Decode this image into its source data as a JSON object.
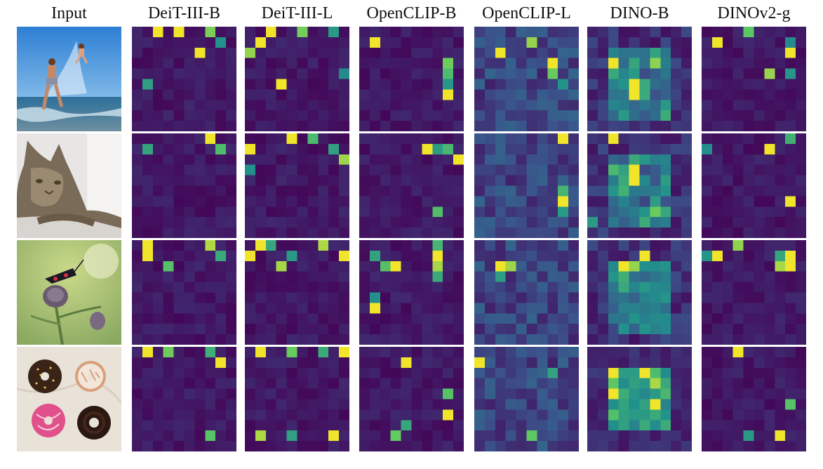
{
  "figure": {
    "columns": [
      "Input",
      "DeiT-III-B",
      "DeiT-III-L",
      "OpenCLIP-B",
      "OpenCLIP-L",
      "DINO-B",
      "DINOv2-g"
    ],
    "rows": [
      {
        "name": "beach-children",
        "input_icon": "beach-photo"
      },
      {
        "name": "tabby-cat",
        "input_icon": "cat-photo"
      },
      {
        "name": "moth-on-thistle",
        "input_icon": "moth-photo"
      },
      {
        "name": "donuts",
        "input_icon": "donut-photo"
      }
    ],
    "colormap": {
      "low": "#440154",
      "mid1": "#3b528b",
      "mid2": "#21918c",
      "mid3": "#5ec962",
      "high": "#fde725"
    }
  }
}
